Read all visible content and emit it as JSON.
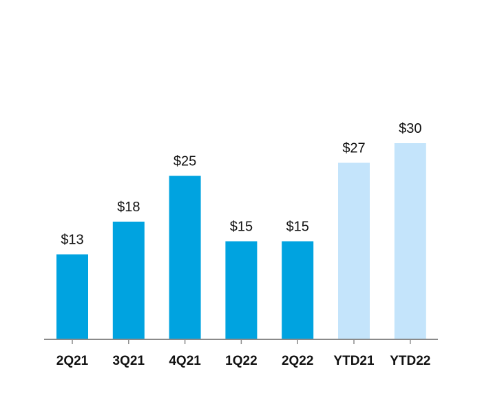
{
  "chart_data": {
    "type": "bar",
    "title": "",
    "xlabel": "",
    "ylabel": "",
    "categories": [
      "2Q21",
      "3Q21",
      "4Q21",
      "1Q22",
      "2Q22",
      "YTD21",
      "YTD22"
    ],
    "values": [
      13,
      18,
      25,
      15,
      15,
      27,
      30
    ],
    "value_labels": [
      "$13",
      "$18",
      "$25",
      "$15",
      "$15",
      "$27",
      "$30"
    ],
    "ylim": [
      0,
      30
    ],
    "grid": false,
    "colors": {
      "quarter": "#00a3e0",
      "ytd": "#c4e4fb",
      "axis": "#8a8a8a"
    },
    "bar_color_keys": [
      "quarter",
      "quarter",
      "quarter",
      "quarter",
      "quarter",
      "ytd",
      "ytd"
    ]
  }
}
